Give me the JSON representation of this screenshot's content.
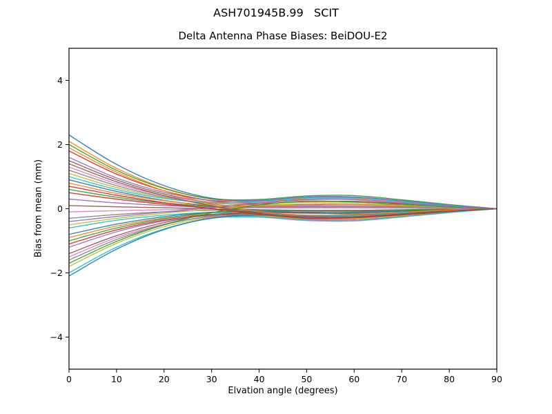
{
  "figure": {
    "suptitle": "ASH701945B.99   SCIT",
    "title": "Delta Antenna Phase Biases: BeiDOU-E2"
  },
  "chart_data": {
    "type": "line",
    "suptitle": "ASH701945B.99   SCIT",
    "title": "Delta Antenna Phase Biases: BeiDOU-E2",
    "xlabel": "Elvation angle (degrees)",
    "ylabel": "Bias from mean (mm)",
    "xlim": [
      0,
      90
    ],
    "ylim": [
      -5,
      5
    ],
    "xticks": [
      0,
      10,
      20,
      30,
      40,
      50,
      60,
      70,
      80,
      90
    ],
    "yticks": [
      -4,
      -2,
      0,
      2,
      4
    ],
    "grid": false,
    "legend": "none",
    "x": [
      0,
      10,
      20,
      30,
      40,
      50,
      60,
      70,
      80,
      90
    ],
    "series": [
      {
        "color": "#1f77b4",
        "values": [
          2.3,
          1.38,
          0.72,
          0.33,
          0.26,
          0.35,
          0.36,
          0.25,
          0.12,
          0
        ]
      },
      {
        "color": "#ff7f0e",
        "values": [
          2.1,
          1.26,
          0.65,
          0.3,
          0.23,
          0.31,
          0.32,
          0.22,
          0.1,
          0
        ]
      },
      {
        "color": "#2ca02c",
        "values": [
          2.0,
          1.2,
          0.63,
          0.31,
          0.29,
          0.4,
          0.41,
          0.28,
          0.13,
          0
        ]
      },
      {
        "color": "#d62728",
        "values": [
          1.8,
          1.08,
          0.56,
          0.25,
          0.17,
          0.22,
          0.23,
          0.16,
          0.08,
          0
        ]
      },
      {
        "color": "#9467bd",
        "values": [
          1.6,
          0.96,
          0.51,
          0.26,
          0.26,
          0.37,
          0.37,
          0.25,
          0.12,
          0
        ]
      },
      {
        "color": "#8c564b",
        "values": [
          1.5,
          0.9,
          0.46,
          0.19,
          0.12,
          0.14,
          0.15,
          0.11,
          0.05,
          0
        ]
      },
      {
        "color": "#e377c2",
        "values": [
          1.3,
          0.78,
          0.41,
          0.21,
          0.2,
          0.28,
          0.29,
          0.2,
          0.09,
          0
        ]
      },
      {
        "color": "#7f7f7f",
        "values": [
          1.2,
          0.72,
          0.37,
          0.14,
          0.06,
          0.06,
          0.07,
          0.05,
          0.03,
          0
        ]
      },
      {
        "color": "#bcbd22",
        "values": [
          1.1,
          0.66,
          0.35,
          0.17,
          0.15,
          0.2,
          0.2,
          0.14,
          0.07,
          0
        ]
      },
      {
        "color": "#17becf",
        "values": [
          1.0,
          0.6,
          0.32,
          0.19,
          0.23,
          0.34,
          0.34,
          0.23,
          0.1,
          0
        ]
      },
      {
        "color": "#1f77b4",
        "values": [
          0.9,
          0.54,
          0.26,
          0.07,
          -0.06,
          -0.12,
          -0.11,
          -0.07,
          -0.03,
          0
        ]
      },
      {
        "color": "#ff7f0e",
        "values": [
          0.8,
          0.48,
          0.25,
          0.11,
          0.09,
          0.11,
          0.12,
          0.08,
          0.04,
          0
        ]
      },
      {
        "color": "#2ca02c",
        "values": [
          0.6,
          0.36,
          0.18,
          0.07,
          0.03,
          0.03,
          0.03,
          0.02,
          0.01,
          0
        ]
      },
      {
        "color": "#d62728",
        "values": [
          0.5,
          0.3,
          0.14,
          0.01,
          -0.12,
          -0.2,
          -0.19,
          -0.13,
          -0.05,
          0
        ]
      },
      {
        "color": "#9467bd",
        "values": [
          0.3,
          0.18,
          0.1,
          0.05,
          0.06,
          0.08,
          0.08,
          0.06,
          0.03,
          0
        ]
      },
      {
        "color": "#8c564b",
        "values": [
          0.1,
          0.06,
          0.03,
          0.0,
          -0.03,
          -0.05,
          -0.05,
          -0.03,
          -0.01,
          0
        ]
      },
      {
        "color": "#e377c2",
        "values": [
          -0.1,
          -0.06,
          -0.03,
          0.0,
          0.03,
          0.05,
          0.05,
          0.03,
          0.01,
          0
        ]
      },
      {
        "color": "#7f7f7f",
        "values": [
          -0.3,
          -0.18,
          -0.1,
          -0.05,
          -0.06,
          -0.08,
          -0.08,
          -0.06,
          -0.03,
          0
        ]
      },
      {
        "color": "#bcbd22",
        "values": [
          -0.5,
          -0.3,
          -0.14,
          -0.02,
          0.09,
          0.15,
          0.15,
          0.1,
          0.04,
          0
        ]
      },
      {
        "color": "#17becf",
        "values": [
          -0.6,
          -0.36,
          -0.2,
          -0.12,
          -0.15,
          -0.21,
          -0.21,
          -0.14,
          -0.07,
          0
        ]
      },
      {
        "color": "#1f77b4",
        "values": [
          -0.8,
          -0.48,
          -0.25,
          -0.11,
          -0.09,
          -0.11,
          -0.12,
          -0.08,
          -0.04,
          0
        ]
      },
      {
        "color": "#ff7f0e",
        "values": [
          -0.9,
          -0.54,
          -0.29,
          -0.17,
          -0.2,
          -0.3,
          -0.3,
          -0.2,
          -0.09,
          0
        ]
      },
      {
        "color": "#2ca02c",
        "values": [
          -1.0,
          -0.6,
          -0.31,
          -0.12,
          -0.06,
          -0.06,
          -0.07,
          -0.05,
          -0.03,
          0
        ]
      },
      {
        "color": "#d62728",
        "values": [
          -1.1,
          -0.66,
          -0.35,
          -0.18,
          -0.17,
          -0.24,
          -0.25,
          -0.17,
          -0.08,
          0
        ]
      },
      {
        "color": "#9467bd",
        "values": [
          -1.2,
          -0.72,
          -0.38,
          -0.21,
          -0.23,
          -0.33,
          -0.34,
          -0.23,
          -0.1,
          0
        ]
      },
      {
        "color": "#8c564b",
        "values": [
          -1.4,
          -0.84,
          -0.43,
          -0.18,
          -0.12,
          -0.14,
          -0.15,
          -0.11,
          -0.05,
          0
        ]
      },
      {
        "color": "#e377c2",
        "values": [
          -1.5,
          -0.9,
          -0.48,
          -0.25,
          -0.26,
          -0.37,
          -0.38,
          -0.26,
          -0.12,
          0
        ]
      },
      {
        "color": "#7f7f7f",
        "values": [
          -1.6,
          -0.96,
          -0.5,
          -0.23,
          -0.17,
          -0.23,
          -0.24,
          -0.16,
          -0.08,
          0
        ]
      },
      {
        "color": "#bcbd22",
        "values": [
          -1.8,
          -1.08,
          -0.56,
          -0.27,
          -0.23,
          -0.31,
          -0.32,
          -0.22,
          -0.1,
          0
        ]
      },
      {
        "color": "#17becf",
        "values": [
          -2.0,
          -1.2,
          -0.63,
          -0.3,
          -0.26,
          -0.35,
          -0.37,
          -0.25,
          -0.12,
          0
        ]
      },
      {
        "color": "#1f77b4",
        "values": [
          -2.1,
          -1.26,
          -0.65,
          -0.29,
          -0.2,
          -0.26,
          -0.27,
          -0.19,
          -0.09,
          0
        ]
      },
      {
        "color": "#ff7f0e",
        "values": [
          1.9,
          1.14,
          0.56,
          0.16,
          -0.09,
          -0.2,
          -0.17,
          -0.11,
          -0.04,
          0
        ]
      },
      {
        "color": "#2ca02c",
        "values": [
          -1.7,
          -1.02,
          -0.5,
          -0.13,
          0.12,
          0.24,
          0.21,
          0.14,
          0.05,
          0
        ]
      },
      {
        "color": "#d62728",
        "values": [
          0.7,
          0.42,
          0.19,
          0.0,
          -0.17,
          -0.3,
          -0.28,
          -0.19,
          -0.08,
          0
        ]
      },
      {
        "color": "#9467bd",
        "values": [
          -0.4,
          -0.24,
          -0.1,
          0.03,
          0.17,
          0.29,
          0.28,
          0.18,
          0.08,
          0
        ]
      },
      {
        "color": "#8c564b",
        "values": [
          1.4,
          0.84,
          0.41,
          0.09,
          -0.15,
          -0.27,
          -0.25,
          -0.16,
          -0.07,
          0
        ]
      }
    ]
  }
}
